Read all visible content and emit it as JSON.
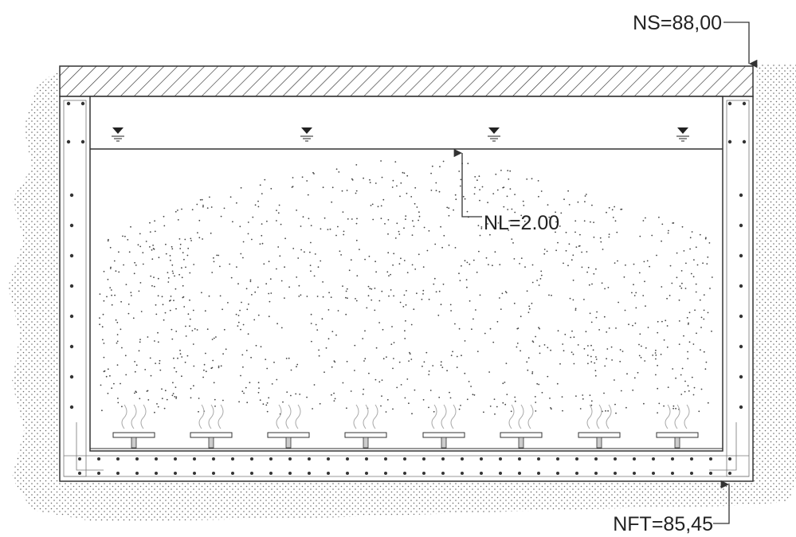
{
  "labels": {
    "ns": "NS=88,00",
    "nl": "NL=2.00",
    "nft": "NFT=85,45"
  }
}
